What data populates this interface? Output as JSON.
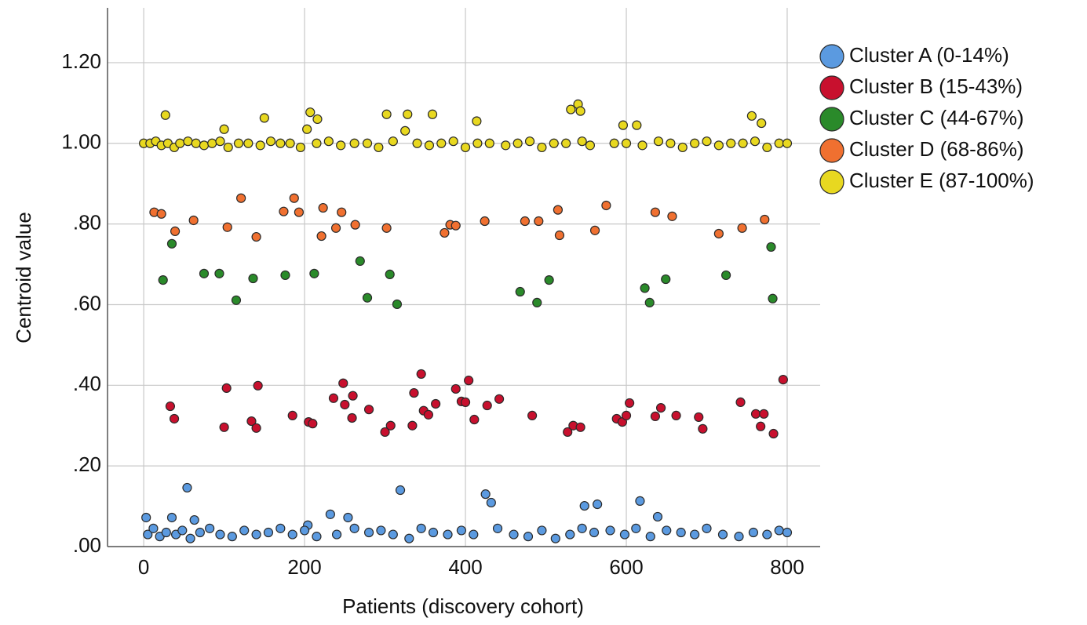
{
  "chart_data": {
    "type": "scatter",
    "x_label": "Patients (discovery cohort)",
    "y_label": "Centroid value",
    "xlim": [
      -45,
      841
    ],
    "ylim": [
      0,
      1.336
    ],
    "xticks": [
      0,
      200,
      400,
      600,
      800
    ],
    "yticks": [
      {
        "value": 0,
        "label": ".00"
      },
      {
        "value": 0.2,
        "label": ".20"
      },
      {
        "value": 0.4,
        "label": ".40"
      },
      {
        "value": 0.6,
        "label": ".60"
      },
      {
        "value": 0.8,
        "label": ".80"
      },
      {
        "value": 1.0,
        "label": "1.00"
      },
      {
        "value": 1.2,
        "label": "1.20"
      }
    ],
    "grid": true,
    "legend": "right",
    "series": [
      {
        "name": "Cluster A (0-14%)",
        "color": "#5b9ae0",
        "x": [
          3,
          35,
          54,
          63,
          204,
          232,
          254,
          319,
          425,
          432,
          548,
          564,
          617,
          639,
          5,
          12,
          20,
          28,
          40,
          48,
          58,
          70,
          82,
          95,
          110,
          125,
          140,
          155,
          170,
          185,
          200,
          215,
          240,
          262,
          280,
          295,
          310,
          330,
          345,
          360,
          378,
          395,
          410,
          440,
          460,
          478,
          495,
          512,
          530,
          545,
          560,
          580,
          598,
          612,
          630,
          650,
          668,
          685,
          700,
          720,
          740,
          758,
          775,
          790,
          800
        ],
        "values": [
          0.072,
          0.072,
          0.146,
          0.066,
          0.053,
          0.08,
          0.072,
          0.14,
          0.13,
          0.109,
          0.101,
          0.105,
          0.113,
          0.074,
          0.03,
          0.045,
          0.025,
          0.035,
          0.03,
          0.04,
          0.02,
          0.035,
          0.045,
          0.03,
          0.025,
          0.04,
          0.03,
          0.035,
          0.045,
          0.03,
          0.04,
          0.025,
          0.03,
          0.045,
          0.035,
          0.04,
          0.03,
          0.02,
          0.045,
          0.035,
          0.03,
          0.04,
          0.03,
          0.045,
          0.03,
          0.025,
          0.04,
          0.02,
          0.03,
          0.045,
          0.035,
          0.04,
          0.03,
          0.045,
          0.025,
          0.04,
          0.035,
          0.03,
          0.045,
          0.03,
          0.025,
          0.035,
          0.03,
          0.04,
          0.035
        ]
      },
      {
        "name": "Cluster B (15-43%)",
        "color": "#c8102e",
        "x": [
          33,
          38,
          100,
          103,
          134,
          140,
          142,
          185,
          205,
          210,
          236,
          248,
          250,
          260,
          259,
          280,
          300,
          307,
          334,
          336,
          345,
          348,
          354,
          363,
          388,
          395,
          400,
          404,
          411,
          427,
          442,
          483,
          527,
          534,
          543,
          588,
          595,
          600,
          604,
          636,
          643,
          662,
          690,
          695,
          742,
          761,
          767,
          771,
          783,
          795
        ],
        "values": [
          0.348,
          0.317,
          0.296,
          0.393,
          0.311,
          0.294,
          0.399,
          0.325,
          0.309,
          0.305,
          0.368,
          0.405,
          0.352,
          0.374,
          0.319,
          0.34,
          0.284,
          0.3,
          0.3,
          0.381,
          0.428,
          0.337,
          0.327,
          0.354,
          0.391,
          0.36,
          0.358,
          0.412,
          0.315,
          0.35,
          0.366,
          0.325,
          0.284,
          0.3,
          0.296,
          0.317,
          0.309,
          0.325,
          0.356,
          0.323,
          0.344,
          0.325,
          0.321,
          0.292,
          0.358,
          0.329,
          0.298,
          0.329,
          0.28,
          0.414
        ]
      },
      {
        "name": "Cluster C (44-67%)",
        "color": "#2a8a2a",
        "x": [
          24,
          35,
          75,
          94,
          115,
          136,
          176,
          212,
          269,
          278,
          306,
          315,
          468,
          489,
          504,
          623,
          629,
          649,
          724,
          780,
          782
        ],
        "values": [
          0.661,
          0.751,
          0.677,
          0.677,
          0.611,
          0.665,
          0.673,
          0.677,
          0.708,
          0.617,
          0.675,
          0.601,
          0.632,
          0.605,
          0.661,
          0.641,
          0.605,
          0.663,
          0.673,
          0.743,
          0.615
        ]
      },
      {
        "name": "Cluster D (68-86%)",
        "color": "#f07030",
        "x": [
          13,
          22,
          39,
          62,
          104,
          121,
          140,
          174,
          187,
          193,
          221,
          223,
          239,
          246,
          263,
          302,
          374,
          381,
          388,
          424,
          474,
          491,
          515,
          517,
          561,
          575,
          636,
          657,
          715,
          744,
          772
        ],
        "values": [
          0.829,
          0.825,
          0.782,
          0.809,
          0.792,
          0.864,
          0.768,
          0.831,
          0.864,
          0.829,
          0.77,
          0.84,
          0.79,
          0.829,
          0.798,
          0.79,
          0.778,
          0.798,
          0.796,
          0.807,
          0.807,
          0.807,
          0.835,
          0.772,
          0.784,
          0.846,
          0.829,
          0.819,
          0.776,
          0.79,
          0.811
        ]
      },
      {
        "name": "Cluster E (87-100%)",
        "color": "#e8d820",
        "x": [
          27,
          100,
          150,
          203,
          207,
          216,
          302,
          325,
          328,
          359,
          414,
          531,
          540,
          543,
          596,
          613,
          756,
          768,
          0,
          8,
          15,
          22,
          30,
          38,
          45,
          55,
          65,
          75,
          85,
          95,
          105,
          118,
          130,
          145,
          158,
          170,
          182,
          195,
          215,
          230,
          245,
          262,
          278,
          292,
          310,
          340,
          355,
          370,
          385,
          400,
          415,
          430,
          450,
          465,
          480,
          495,
          510,
          525,
          545,
          555,
          585,
          600,
          620,
          640,
          655,
          670,
          685,
          700,
          715,
          730,
          745,
          760,
          775,
          790,
          800
        ],
        "values": [
          1.07,
          1.035,
          1.063,
          1.035,
          1.077,
          1.06,
          1.072,
          1.031,
          1.072,
          1.072,
          1.055,
          1.084,
          1.097,
          1.08,
          1.045,
          1.045,
          1.068,
          1.05,
          1.0,
          1.0,
          1.005,
          0.995,
          1.0,
          0.99,
          1.0,
          1.005,
          1.0,
          0.995,
          1.0,
          1.005,
          0.99,
          1.0,
          1.0,
          0.995,
          1.005,
          1.0,
          1.0,
          0.99,
          1.0,
          1.005,
          0.995,
          1.0,
          1.0,
          0.99,
          1.005,
          1.0,
          0.995,
          1.0,
          1.005,
          0.99,
          1.0,
          1.0,
          0.995,
          1.0,
          1.005,
          0.99,
          1.0,
          1.0,
          1.005,
          0.995,
          1.0,
          1.0,
          0.995,
          1.005,
          1.0,
          0.99,
          1.0,
          1.005,
          0.995,
          1.0,
          1.0,
          1.005,
          0.99,
          1.0,
          1.0
        ]
      }
    ]
  }
}
